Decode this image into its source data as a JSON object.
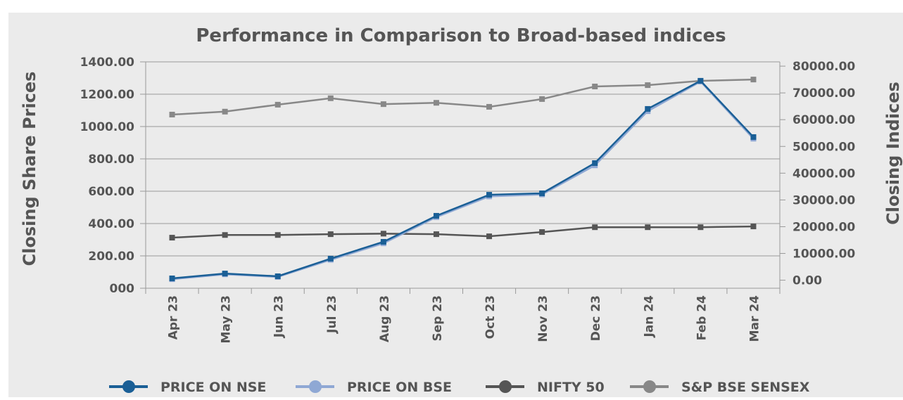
{
  "chart_data": {
    "type": "line",
    "title": "Performance in Comparison to Broad-based indices",
    "y_label": "Closing Share Prices",
    "y2_label": "Closing Indices",
    "categories": [
      "Apr 23",
      "May 23",
      "Jun 23",
      "Jul 23",
      "Aug 23",
      "Sep 23",
      "Oct 23",
      "Nov 23",
      "Dec 23",
      "Jan 24",
      "Feb 24",
      "Mar 24"
    ],
    "ylim": [
      0,
      1400
    ],
    "yticks": [
      {
        "value": 0,
        "label": "000"
      },
      {
        "value": 200,
        "label": "200.00"
      },
      {
        "value": 400,
        "label": "400.00"
      },
      {
        "value": 600,
        "label": "600.00"
      },
      {
        "value": 800,
        "label": "800.00"
      },
      {
        "value": 1000,
        "label": "1000.00"
      },
      {
        "value": 1200,
        "label": "1200.00"
      },
      {
        "value": 1400,
        "label": "1400.00"
      }
    ],
    "y2lim": [
      -3000,
      81600
    ],
    "y2ticks": [
      {
        "value": 0,
        "label": "0.00"
      },
      {
        "value": 10000,
        "label": "10000.00"
      },
      {
        "value": 20000,
        "label": "20000.00"
      },
      {
        "value": 30000,
        "label": "30000.00"
      },
      {
        "value": 40000,
        "label": "40000.00"
      },
      {
        "value": 50000,
        "label": "50000.00"
      },
      {
        "value": 60000,
        "label": "60000.00"
      },
      {
        "value": 70000,
        "label": "70000.00"
      },
      {
        "value": 80000,
        "label": "80000.00"
      }
    ],
    "grid": true,
    "legend": "bottom",
    "series": [
      {
        "name": "PRICE ON NSE",
        "color": "#1a5f96",
        "axis": "y",
        "values": [
          61,
          91,
          74,
          183,
          287,
          448,
          578,
          587,
          774,
          1109,
          1283,
          935
        ]
      },
      {
        "name": "PRICE ON BSE",
        "color": "#8fa8d4",
        "axis": "y",
        "values": [
          56,
          86,
          70,
          176,
          278,
          440,
          568,
          580,
          760,
          1095,
          1278,
          925
        ]
      },
      {
        "name": "NIFTY 50",
        "color": "#555555",
        "axis": "y2",
        "values": [
          15900,
          16900,
          16900,
          17200,
          17400,
          17200,
          16400,
          18000,
          19800,
          19800,
          19800,
          20100
        ]
      },
      {
        "name": "S&P BSE SENSEX",
        "color": "#888888",
        "axis": "y2",
        "values": [
          61900,
          63000,
          65600,
          68000,
          65800,
          66300,
          64800,
          67700,
          72400,
          72900,
          74500,
          75000
        ]
      }
    ]
  }
}
